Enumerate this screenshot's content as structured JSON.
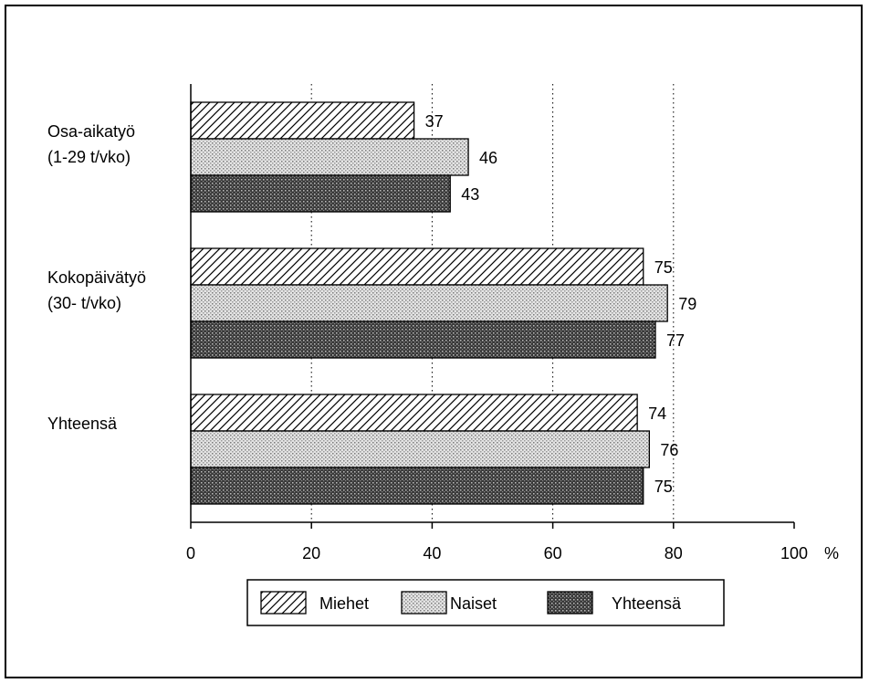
{
  "chart_data": {
    "type": "bar",
    "orientation": "horizontal",
    "categories": [
      [
        "Osa-aikatyö",
        "(1-29 t/vko)"
      ],
      [
        "Kokopäivätyö",
        "(30- t/vko)"
      ],
      [
        "Yhteensä"
      ]
    ],
    "series": [
      {
        "name": "Miehet",
        "values": [
          37,
          75,
          74
        ],
        "pattern": "hatch"
      },
      {
        "name": "Naiset",
        "values": [
          46,
          79,
          76
        ],
        "pattern": "light-dots"
      },
      {
        "name": "Yhteensä",
        "values": [
          43,
          77,
          75
        ],
        "pattern": "dark-dots"
      }
    ],
    "xlim": [
      0,
      100
    ],
    "xticks": [
      0,
      20,
      40,
      60,
      80,
      100
    ],
    "xtick_labels": [
      "0",
      "20",
      "40",
      "60",
      "80",
      "100"
    ],
    "x_unit": "%",
    "grid": "vertical dotted",
    "legend_position": "bottom"
  }
}
